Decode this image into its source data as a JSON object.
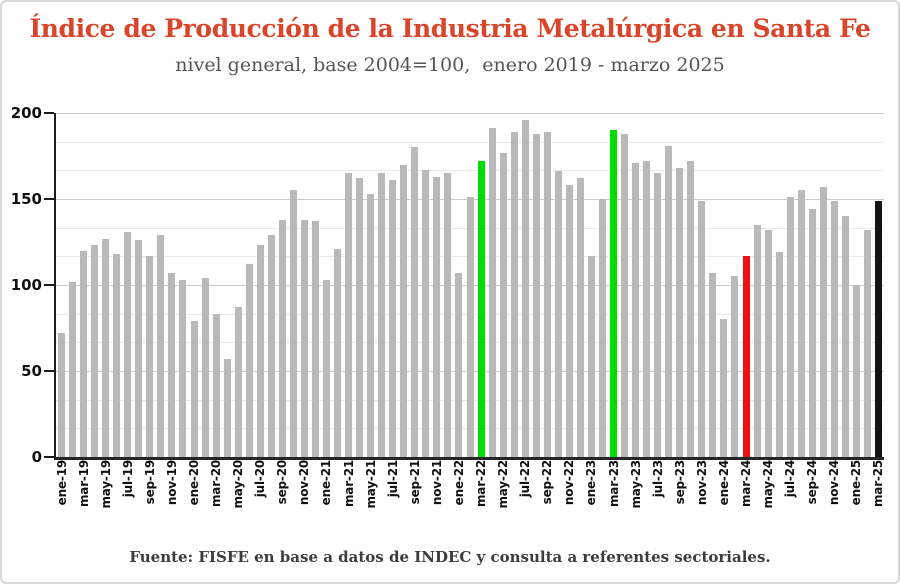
{
  "colors": {
    "title": "#d8452a",
    "subtitle": "#555555",
    "bar_default": "#b9b9b9",
    "bar_green": "#00dd00",
    "bar_red": "#ee1111",
    "bar_black": "#141414",
    "axis": "#1c1c1c",
    "grid_major": "#cbcbcb",
    "grid_minor": "#e9e9e9"
  },
  "chart_data": {
    "type": "bar",
    "title": "Índice de Producción de la Industria Metalúrgica en Santa Fe",
    "subtitle": "nivel general, base 2004=100,  enero 2019 - marzo 2025",
    "source": "Fuente: FISFE en base a datos de INDEC y consulta a referentes sectoriales.",
    "ylim": [
      0,
      200
    ],
    "yticks": [
      0,
      50,
      100,
      150,
      200
    ],
    "minor_divisions_per_major": 3,
    "grid": true,
    "legend": null,
    "xtick_every": 2,
    "x": [
      "ene-19",
      "feb-19",
      "mar-19",
      "abr-19",
      "may-19",
      "jun-19",
      "jul-19",
      "ago-19",
      "sep-19",
      "oct-19",
      "nov-19",
      "dic-19",
      "ene-20",
      "feb-20",
      "mar-20",
      "abr-20",
      "may-20",
      "jun-20",
      "jul-20",
      "ago-20",
      "sep-20",
      "oct-20",
      "nov-20",
      "dic-20",
      "ene-21",
      "feb-21",
      "mar-21",
      "abr-21",
      "may-21",
      "jun-21",
      "jul-21",
      "ago-21",
      "sep-21",
      "oct-21",
      "nov-21",
      "dic-21",
      "ene-22",
      "feb-22",
      "mar-22",
      "abr-22",
      "may-22",
      "jun-22",
      "jul-22",
      "ago-22",
      "sep-22",
      "oct-22",
      "nov-22",
      "dic-22",
      "ene-23",
      "feb-23",
      "mar-23",
      "abr-23",
      "may-23",
      "jun-23",
      "jul-23",
      "ago-23",
      "sep-23",
      "oct-23",
      "nov-23",
      "dic-23",
      "ene-24",
      "feb-24",
      "mar-24",
      "abr-24",
      "may-24",
      "jun-24",
      "jul-24",
      "ago-24",
      "sep-24",
      "oct-24",
      "nov-24",
      "dic-24",
      "ene-25",
      "feb-25",
      "mar-25"
    ],
    "values": [
      72,
      102,
      120,
      123,
      127,
      118,
      131,
      126,
      117,
      129,
      107,
      103,
      79,
      104,
      83,
      57,
      87,
      112,
      123,
      129,
      138,
      155,
      138,
      137,
      103,
      121,
      165,
      162,
      153,
      165,
      161,
      170,
      180,
      167,
      163,
      165,
      107,
      151,
      172,
      191,
      177,
      189,
      196,
      188,
      189,
      166,
      158,
      162,
      117,
      150,
      190,
      188,
      171,
      172,
      165,
      181,
      168,
      172,
      149,
      107,
      80,
      105,
      117,
      135,
      132,
      119,
      151,
      155,
      144,
      157,
      149,
      140,
      100,
      132,
      149
    ],
    "highlight": {
      "38": "green",
      "50": "green",
      "62": "red",
      "74": "black"
    }
  }
}
